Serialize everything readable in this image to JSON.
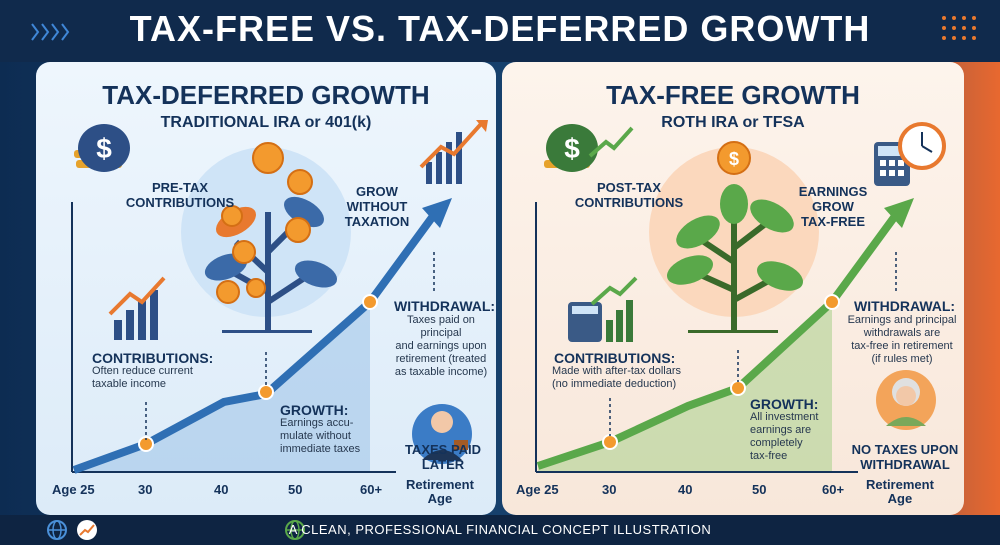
{
  "title": "TAX-FREE VS. TAX-DEFERRED GROWTH",
  "left": {
    "title": "TAX-DEFERRED GROWTH",
    "subtitle": "TRADITIONAL IRA or 401(k)",
    "pretax": "PRE-TAX\nCONTRIBUTIONS",
    "grow": "GROW\nWITHOUT\nTAXATION",
    "contrib_head": "CONTRIBUTIONS:",
    "contrib_body": "Often reduce current\ntaxable income",
    "growth_head": "GROWTH:",
    "growth_body": "Earnings accu-\nmulate without\nimmediate taxes",
    "withdraw_head": "WITHDRAWAL:",
    "withdraw_body": "Taxes paid on principal\nand earnings upon\nretirement (treated\nas taxable income)",
    "taxes_later": "TAXES PAID\nLATER",
    "ticks": [
      "Age 25",
      "30",
      "40",
      "50",
      "60+"
    ],
    "axis_end": "Retirement\nAge",
    "accent": "#2f6fb4"
  },
  "right": {
    "title": "TAX-FREE GROWTH",
    "subtitle": "ROTH IRA or TFSA",
    "posttax": "POST-TAX\nCONTRIBUTIONS",
    "earnings": "EARNINGS\nGROW\nTAX-FREE",
    "contrib_head": "CONTRIBUTIONS:",
    "contrib_body": "Made with after-tax dollars\n(no immediate deduction)",
    "growth_head": "GROWTH:",
    "growth_body": "All investment\nearnings are\ncompletely\ntax-free",
    "withdraw_head": "WITHDRAWAL:",
    "withdraw_body": "Earnings and principal\nwithdrawals are\ntax-free in retirement\n(if rules met)",
    "no_taxes": "NO TAXES UPON\nWITHDRAWAL",
    "ticks": [
      "Age 25",
      "30",
      "40",
      "50",
      "60+"
    ],
    "axis_end": "Retirement\nAge",
    "accent": "#5aa84a"
  },
  "footer": "A CLEAN, PROFESSIONAL FINANCIAL CONCEPT ILLUSTRATION"
}
